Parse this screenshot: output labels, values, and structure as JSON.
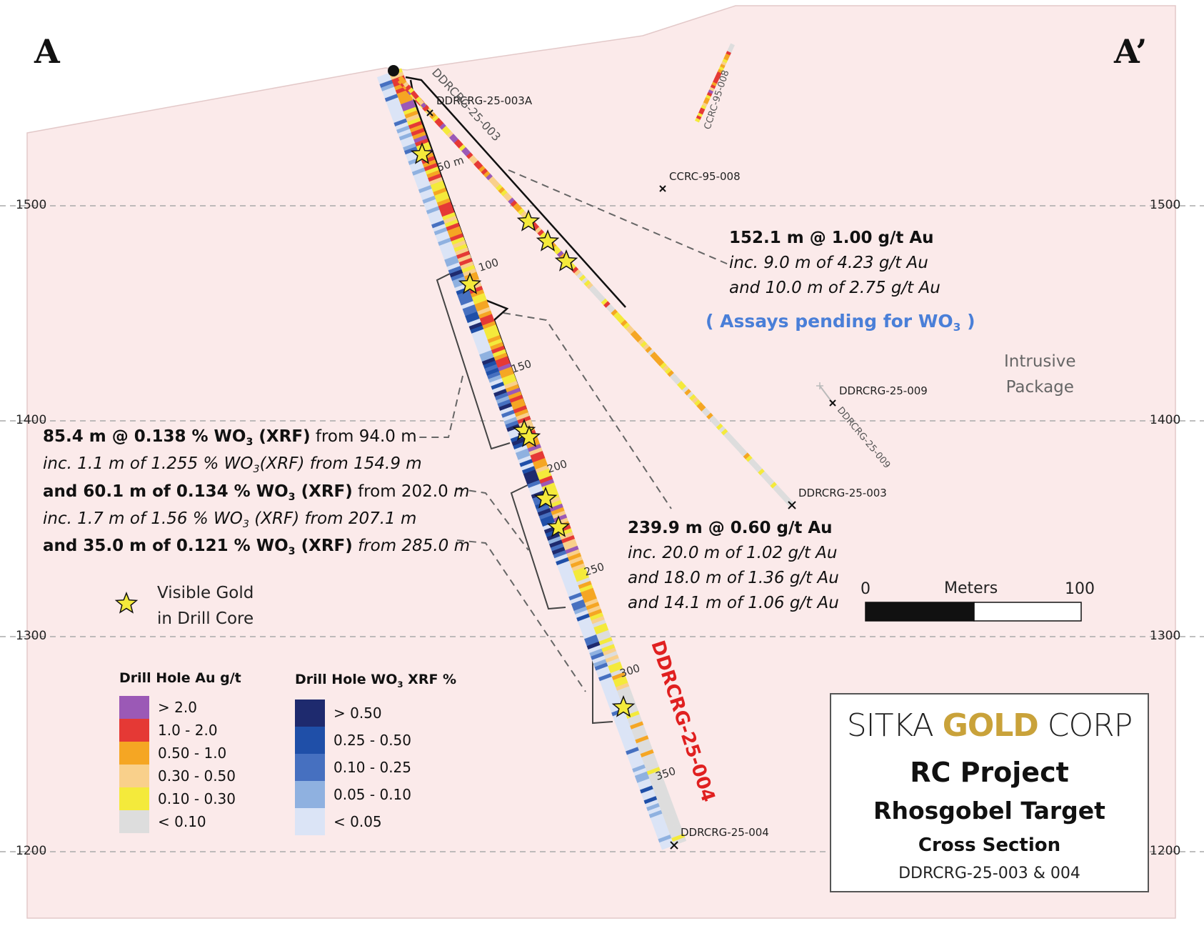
{
  "section_labels": {
    "left": "A",
    "right": "A’"
  },
  "elevations": [
    "1500",
    "1400",
    "1300",
    "1200"
  ],
  "drill_holes": {
    "d003a_label": "DDRCRG-25-003A",
    "d003_top_label": "DDRCRG-25-003",
    "d003_bottom_label": "DDRCRG-25-003",
    "d004_bottom_label": "DDRCRG-25-004",
    "d004_big_label": "DDRCRG-25-004",
    "ccrc_top_label": "CCRC-95-008",
    "ccrc_label": "CCRC-95-008",
    "d009_label": "DDRCRG-25-009",
    "d009_trace_label": "DDRCRG-25-009"
  },
  "depth_marks": [
    "50 m",
    "100",
    "150",
    "200",
    "250",
    "300",
    "350"
  ],
  "annotations": {
    "au_003": {
      "line1": "152.1 m @ 1.00 g/t Au",
      "line2": "inc. 9.0 m of 4.23 g/t Au",
      "line3": "and 10.0 m of 2.75 g/t Au",
      "pending_pre": "( Assays pending for WO",
      "pending_sub": "3",
      "pending_post": " )"
    },
    "wo3_004": {
      "l1_bold": "85.4 m @ 0.138 % WO",
      "l1_sub": "3",
      "l1_bold_tail": " (XRF)",
      "l1_tail": " from 94.0 m",
      "l2_a": "inc. 1.1 m of 1.255 % WO",
      "l2_sub": "3",
      "l2_b": "(XRF) from 154.9 m",
      "l3_bold": "and 60.1 m of 0.134 % WO",
      "l3_sub": "3",
      "l3_bold_tail": " (XRF)",
      "l3_tail": " from 202.0 ",
      "l3_tail_i": "m",
      "l4_a": "inc. 1.7 m of 1.56 % WO",
      "l4_sub": "3",
      "l4_b": " (XRF) from 207.1 m",
      "l5_bold": "and 35.0 m of 0.121 % WO",
      "l5_sub": "3",
      "l5_bold_tail": " (XRF)",
      "l5_tail": " from 285.0 m"
    },
    "au_004": {
      "line1": "239.9 m @ 0.60 g/t Au",
      "line2": "inc. 20.0 m of 1.02 g/t Au",
      "line3": "and 18.0 m of 1.36 g/t Au",
      "line4": "and  14.1 m of 1.06 g/t Au"
    }
  },
  "intrusive": {
    "line1": "Intrusive",
    "line2": "Package"
  },
  "scale_bar": {
    "left": "0",
    "title": "Meters",
    "right": "100"
  },
  "visible_gold": {
    "line1": "Visible Gold",
    "line2": "in Drill Core"
  },
  "legend_au": {
    "title": "Drill Hole Au g/t",
    "items": [
      {
        "label": "> 2.0",
        "color": "#9b59b6"
      },
      {
        "label": "1.0 - 2.0",
        "color": "#e53935"
      },
      {
        "label": "0.50 - 1.0",
        "color": "#f5a623"
      },
      {
        "label": "0.30 - 0.50",
        "color": "#f9d08b"
      },
      {
        "label": "0.10 - 0.30",
        "color": "#f4ea3b"
      },
      {
        "label": "< 0.10",
        "color": "#dddddd"
      }
    ]
  },
  "legend_wo3": {
    "title_pre": "Drill Hole WO",
    "title_sub": "3",
    "title_post": " XRF %",
    "items": [
      {
        "label": "> 0.50",
        "color": "#1e2a6e"
      },
      {
        "label": "0.25 - 0.50",
        "color": "#1f4fa8"
      },
      {
        "label": "0.10 - 0.25",
        "color": "#4670c0"
      },
      {
        "label": "0.05 - 0.10",
        "color": "#8fb1e0"
      },
      {
        "label": "< 0.05",
        "color": "#dbe4f6"
      }
    ]
  },
  "title_box": {
    "brand_a": "SITKA ",
    "brand_gold": "GOLD",
    "brand_b": " CORP",
    "line1": "RC Project",
    "line2": "Rhosgobel Target",
    "line3": "Cross Section",
    "line4": "DDRCRG-25-003 & 004"
  },
  "colors": {
    "background": "#fbeaea",
    "pending_blue": "#4a7fd8",
    "label_red": "#e02020",
    "star": "#f4ea3b"
  }
}
